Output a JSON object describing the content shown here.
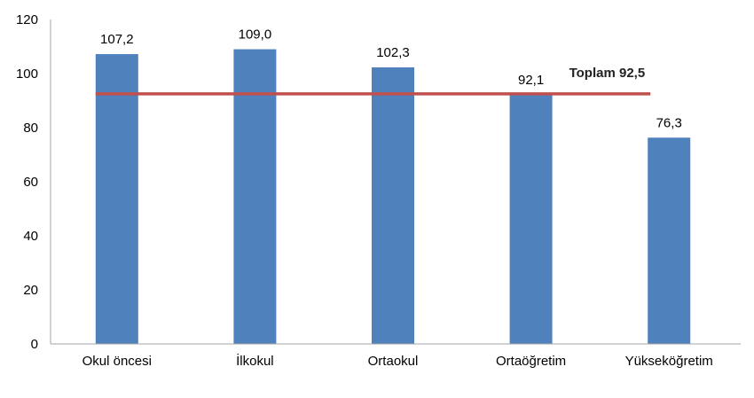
{
  "chart_data": {
    "type": "bar",
    "categories": [
      "Okul öncesi",
      "İlkokul",
      "Ortaokul",
      "Ortaöğretim",
      "Yükseköğretim"
    ],
    "values": [
      107.2,
      109.0,
      102.3,
      92.1,
      76.3
    ],
    "value_labels": [
      "107,2",
      "109,0",
      "102,3",
      "92,1",
      "76,3"
    ],
    "ylim": [
      0,
      120
    ],
    "yticks": [
      0,
      20,
      40,
      60,
      80,
      100,
      120
    ],
    "grid": false,
    "reference_line": {
      "value": 92.5,
      "label": "Toplam 92,5"
    },
    "colors": {
      "bar": "#4f81bd",
      "reference_line": "#c0504d"
    }
  }
}
